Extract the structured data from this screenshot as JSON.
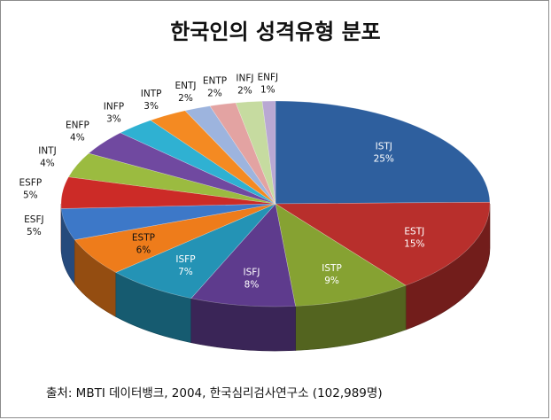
{
  "chart_data": {
    "type": "pie",
    "title": "한국인의 성격유형 분포",
    "source": "출처: MBTI 데이터뱅크, 2004, 한국심리검사연구소 (102,989명)",
    "slices": [
      {
        "label": "ISTJ",
        "value": 25,
        "display": "25%",
        "color": "#2e5f9e",
        "label_color": "#ffffff"
      },
      {
        "label": "ESTJ",
        "value": 15,
        "display": "15%",
        "color": "#b82f2c",
        "label_color": "#ffffff"
      },
      {
        "label": "ISTP",
        "value": 9,
        "display": "9%",
        "color": "#86a232",
        "label_color": "#ffffff"
      },
      {
        "label": "ISFJ",
        "value": 8,
        "display": "8%",
        "color": "#5e3b8d",
        "label_color": "#ffffff"
      },
      {
        "label": "ISFP",
        "value": 7,
        "display": "7%",
        "color": "#2493b5",
        "label_color": "#ffffff"
      },
      {
        "label": "ESTP",
        "value": 6,
        "display": "6%",
        "color": "#ee7c1b",
        "label_color": "#111111"
      },
      {
        "label": "ESFJ",
        "value": 5,
        "display": "5%",
        "color": "#3d78c8",
        "label_color": "#111111"
      },
      {
        "label": "ESFP",
        "value": 5,
        "display": "5%",
        "color": "#cc2b27",
        "label_color": "#111111"
      },
      {
        "label": "INTJ",
        "value": 4,
        "display": "4%",
        "color": "#9bbb40",
        "label_color": "#111111"
      },
      {
        "label": "ENFP",
        "value": 4,
        "display": "4%",
        "color": "#7049a0",
        "label_color": "#111111"
      },
      {
        "label": "INFP",
        "value": 3,
        "display": "3%",
        "color": "#2fb1d2",
        "label_color": "#111111"
      },
      {
        "label": "INTP",
        "value": 3,
        "display": "3%",
        "color": "#f48a22",
        "label_color": "#111111"
      },
      {
        "label": "ENTJ",
        "value": 2,
        "display": "2%",
        "color": "#9db4de",
        "label_color": "#111111"
      },
      {
        "label": "ENTP",
        "value": 2,
        "display": "2%",
        "color": "#e3a3a2",
        "label_color": "#111111"
      },
      {
        "label": "INFJ",
        "value": 2,
        "display": "2%",
        "color": "#c6dba0",
        "label_color": "#111111"
      },
      {
        "label": "ENFJ",
        "value": 1,
        "display": "1%",
        "color": "#b9a8d3",
        "label_color": "#111111"
      }
    ]
  }
}
